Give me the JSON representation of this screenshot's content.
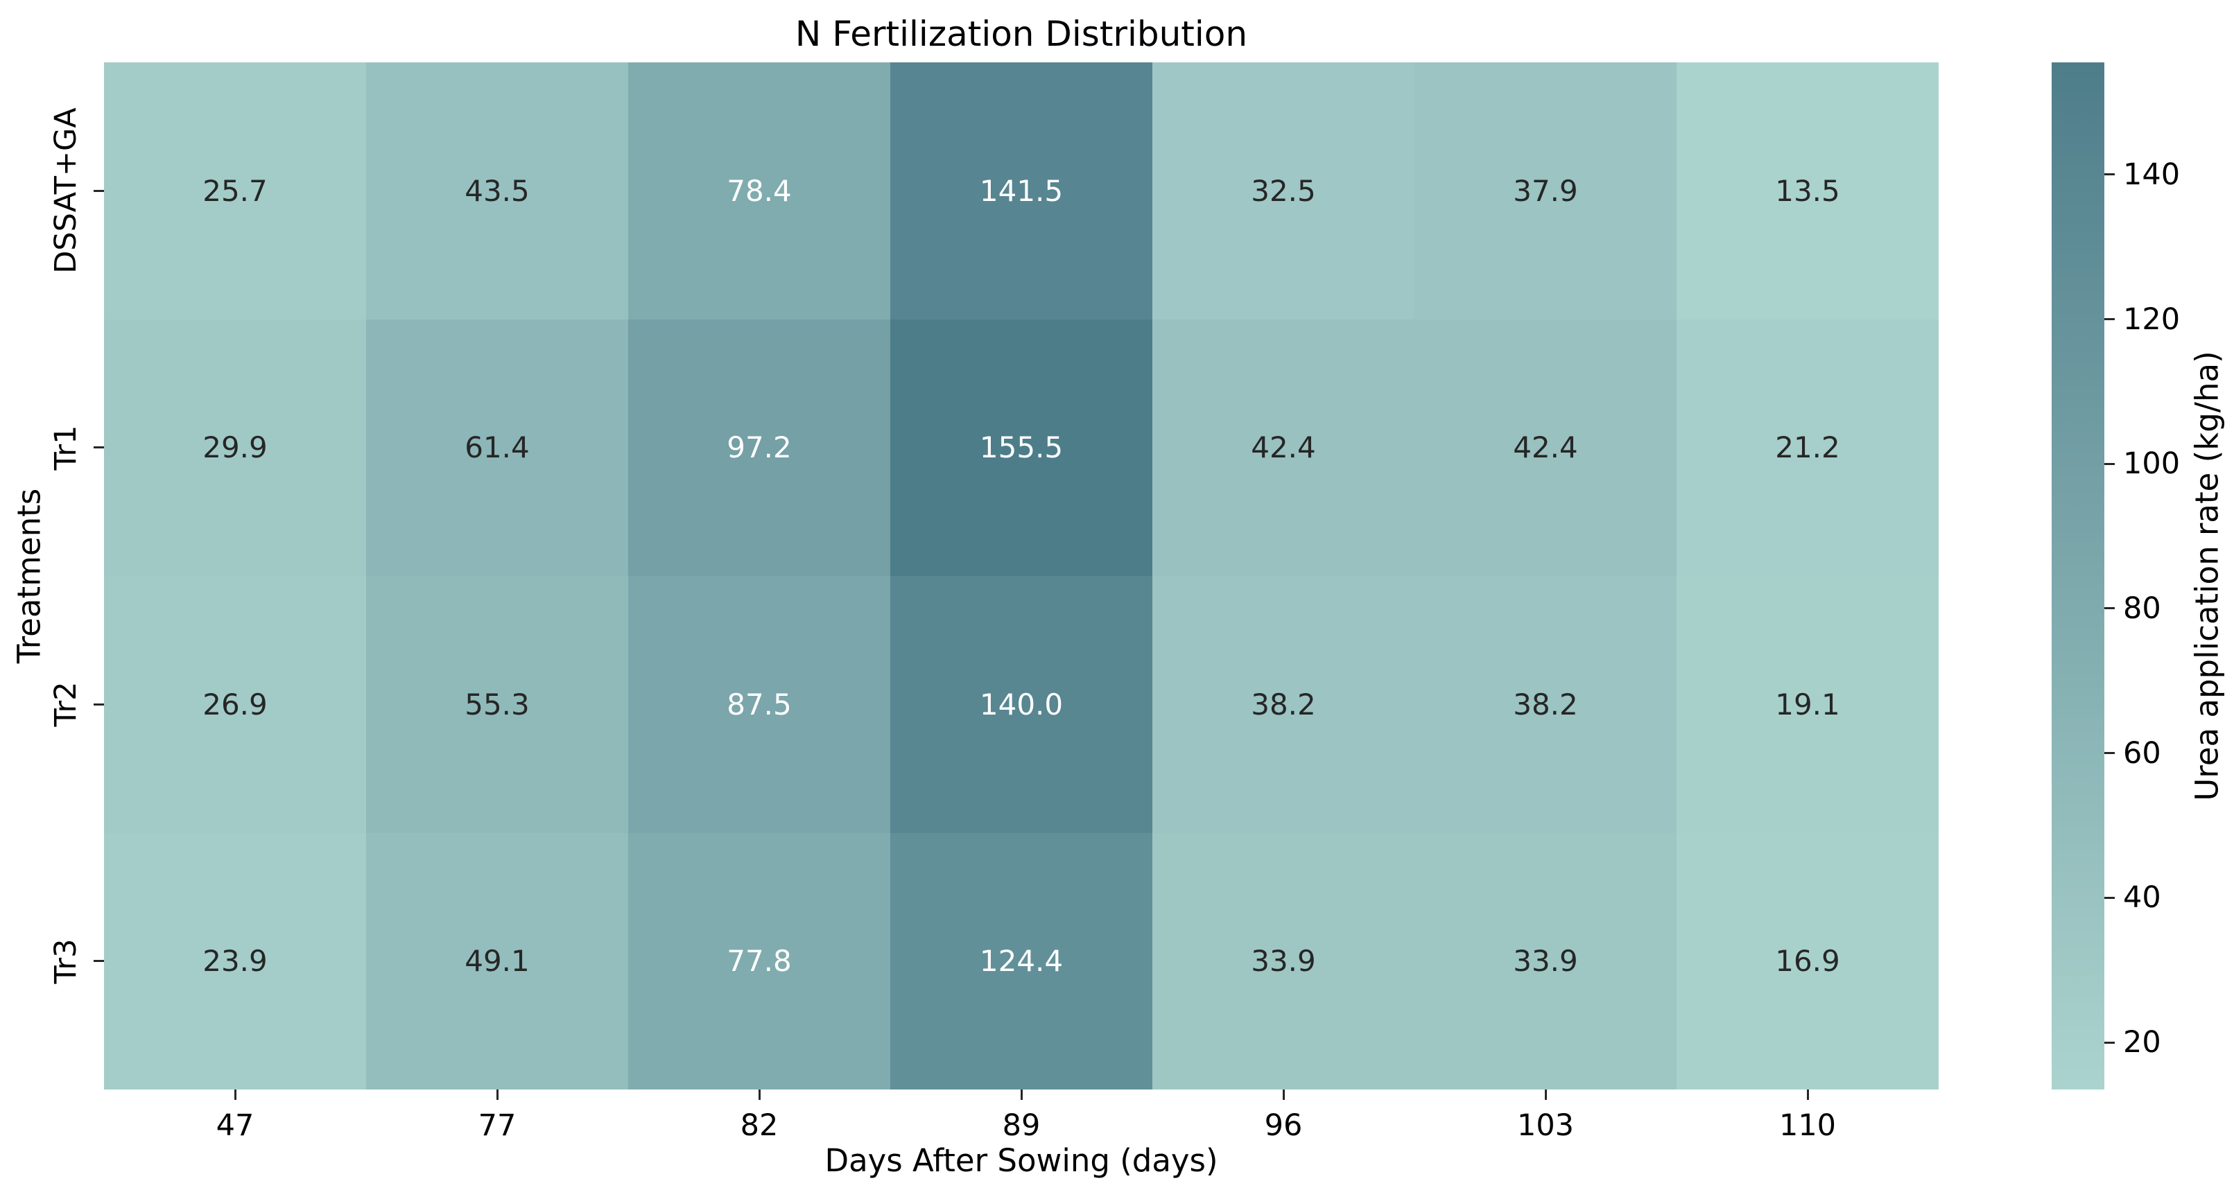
{
  "title": "N Fertilization Distribution",
  "chart_data": {
    "type": "heatmap",
    "title": "N Fertilization Distribution",
    "xlabel": "Days After Sowing (days)",
    "ylabel": "Treatments",
    "x_categories": [
      "47",
      "77",
      "82",
      "89",
      "96",
      "103",
      "110"
    ],
    "y_categories": [
      "DSSAT+GA",
      "Tr1",
      "Tr2",
      "Tr3"
    ],
    "series": [
      {
        "name": "DSSAT+GA",
        "values": [
          25.7,
          43.5,
          78.4,
          141.5,
          32.5,
          37.9,
          13.5
        ]
      },
      {
        "name": "Tr1",
        "values": [
          29.9,
          61.4,
          97.2,
          155.5,
          42.4,
          42.4,
          21.2
        ]
      },
      {
        "name": "Tr2",
        "values": [
          26.9,
          55.3,
          87.5,
          140.0,
          38.2,
          38.2,
          19.1
        ]
      },
      {
        "name": "Tr3",
        "values": [
          23.9,
          49.1,
          77.8,
          124.4,
          33.9,
          33.9,
          16.9
        ]
      }
    ],
    "value_format_decimals": 1,
    "colorbar": {
      "label": "Urea application rate (kg/ha)",
      "ticks": [
        20,
        40,
        60,
        80,
        100,
        120,
        140
      ],
      "vmin": 13.5,
      "vmax": 155.5,
      "color_low": "#abd3ce",
      "color_high": "#4e7d8a",
      "position": "right"
    },
    "annotation_colors": {
      "dark": "#262626",
      "light": "#ffffff"
    },
    "grid": false,
    "legend_position": "none"
  }
}
